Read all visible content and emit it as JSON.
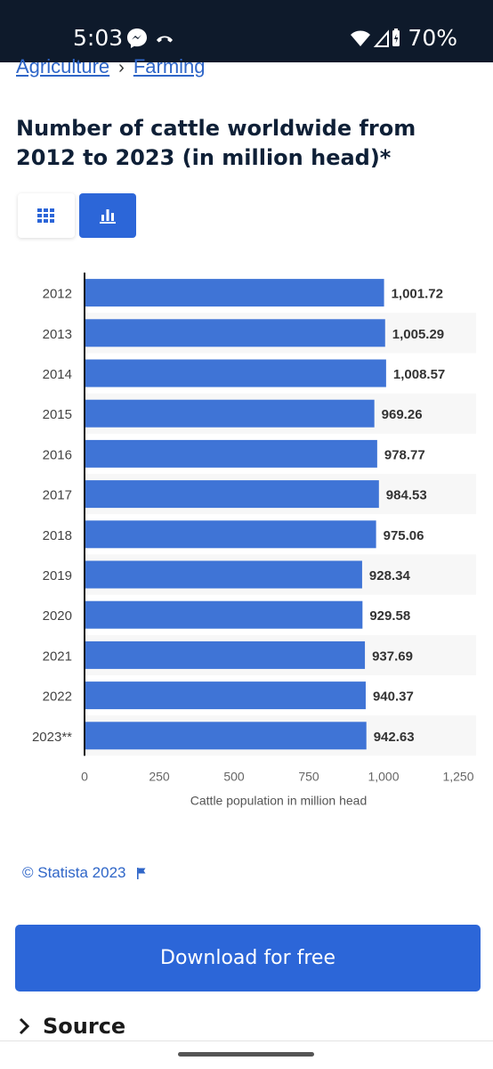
{
  "status_bar": {
    "time": "5:03",
    "battery": "70%",
    "icons": [
      "messenger-icon",
      "call-icon",
      "wifi-icon",
      "signal-icon",
      "battery-icon"
    ]
  },
  "breadcrumb": {
    "items": [
      "Agriculture",
      "Farming"
    ],
    "separator": "›"
  },
  "title": "Number of cattle worldwide from 2012 to 2023 (in million head)*",
  "view_toggle": {
    "options": [
      "table-icon",
      "bar-chart-icon"
    ],
    "selected": "bar-chart-icon"
  },
  "chart_data": {
    "type": "bar",
    "orientation": "horizontal",
    "categories": [
      "2012",
      "2013",
      "2014",
      "2015",
      "2016",
      "2017",
      "2018",
      "2019",
      "2020",
      "2021",
      "2022",
      "2023**"
    ],
    "values": [
      1001.72,
      1005.29,
      1008.57,
      969.26,
      978.77,
      984.53,
      975.06,
      928.34,
      929.58,
      937.69,
      940.37,
      942.63
    ],
    "value_labels": [
      "1,001.72",
      "1,005.29",
      "1,008.57",
      "969.26",
      "978.77",
      "984.53",
      "975.06",
      "928.34",
      "929.58",
      "937.69",
      "940.37",
      "942.63"
    ],
    "xlabel": "Cattle population in million head",
    "ylabel": "",
    "xlim": [
      0,
      1250
    ],
    "ticks": [
      0,
      250,
      500,
      750,
      1000,
      1250
    ],
    "tick_labels": [
      "0",
      "250",
      "500",
      "750",
      "1,000",
      "1,250"
    ],
    "bar_color": "#3f74d6",
    "grid": false
  },
  "credit": {
    "text": "© Statista 2023"
  },
  "download_label": "Download for free",
  "source_label": "Source"
}
